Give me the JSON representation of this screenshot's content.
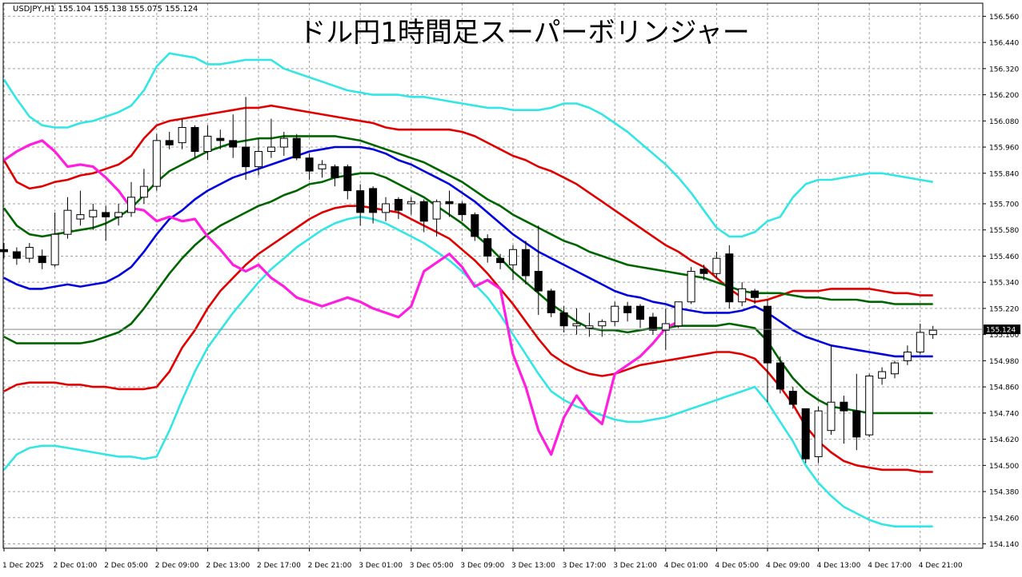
{
  "header": {
    "symbol_info": "USDJPY,H1  155.104 155.138 155.075 155.124",
    "title": "ドル円1時間足スーパーボリンジャー"
  },
  "current_price_label": "155.124",
  "colors": {
    "background": "#ffffff",
    "grid": "#a0a0a0",
    "candle_bull_fill": "#ffffff",
    "candle_bear_fill": "#000000",
    "candle_outline": "#000000",
    "sma": "#0000dd",
    "band_1sigma": "#006400",
    "band_2sigma": "#e00000",
    "band_3sigma": "#33e6e6",
    "lagging_span": "#ff1ee0",
    "price_line": "#888888"
  },
  "chart_data": {
    "type": "candlestick",
    "grid": true,
    "ylim": [
      154.12,
      156.62
    ],
    "y_ticks": [
      "156.560",
      "156.440",
      "156.320",
      "156.200",
      "156.080",
      "155.960",
      "155.840",
      "155.700",
      "155.580",
      "155.460",
      "155.340",
      "155.220",
      "155.100",
      "154.980",
      "154.860",
      "154.740",
      "154.620",
      "154.500",
      "154.380",
      "154.260",
      "154.140"
    ],
    "x_ticks": [
      {
        "bar": 0,
        "label": "1 Dec 2025"
      },
      {
        "bar": 4,
        "label": "2 Dec 01:00"
      },
      {
        "bar": 8,
        "label": "2 Dec 05:00"
      },
      {
        "bar": 12,
        "label": "2 Dec 09:00"
      },
      {
        "bar": 16,
        "label": "2 Dec 13:00"
      },
      {
        "bar": 20,
        "label": "2 Dec 17:00"
      },
      {
        "bar": 24,
        "label": "2 Dec 21:00"
      },
      {
        "bar": 28,
        "label": "3 Dec 01:00"
      },
      {
        "bar": 32,
        "label": "3 Dec 05:00"
      },
      {
        "bar": 36,
        "label": "3 Dec 09:00"
      },
      {
        "bar": 40,
        "label": "3 Dec 13:00"
      },
      {
        "bar": 44,
        "label": "3 Dec 17:00"
      },
      {
        "bar": 48,
        "label": "3 Dec 21:00"
      },
      {
        "bar": 52,
        "label": "4 Dec 01:00"
      },
      {
        "bar": 56,
        "label": "4 Dec 05:00"
      },
      {
        "bar": 60,
        "label": "4 Dec 09:00"
      },
      {
        "bar": 64,
        "label": "4 Dec 13:00"
      },
      {
        "bar": 68,
        "label": "4 Dec 17:00"
      },
      {
        "bar": 72,
        "label": "4 Dec 21:00"
      }
    ],
    "candles": [
      {
        "o": 155.49,
        "h": 155.52,
        "l": 155.45,
        "c": 155.48
      },
      {
        "o": 155.48,
        "h": 155.5,
        "l": 155.42,
        "c": 155.45
      },
      {
        "o": 155.45,
        "h": 155.52,
        "l": 155.43,
        "c": 155.5
      },
      {
        "o": 155.46,
        "h": 155.49,
        "l": 155.4,
        "c": 155.43
      },
      {
        "o": 155.42,
        "h": 155.66,
        "l": 155.41,
        "c": 155.56
      },
      {
        "o": 155.56,
        "h": 155.73,
        "l": 155.54,
        "c": 155.67
      },
      {
        "o": 155.63,
        "h": 155.76,
        "l": 155.6,
        "c": 155.65
      },
      {
        "o": 155.64,
        "h": 155.7,
        "l": 155.58,
        "c": 155.67
      },
      {
        "o": 155.66,
        "h": 155.69,
        "l": 155.53,
        "c": 155.64
      },
      {
        "o": 155.64,
        "h": 155.7,
        "l": 155.6,
        "c": 155.66
      },
      {
        "o": 155.66,
        "h": 155.8,
        "l": 155.64,
        "c": 155.73
      },
      {
        "o": 155.73,
        "h": 155.86,
        "l": 155.7,
        "c": 155.78
      },
      {
        "o": 155.78,
        "h": 156.02,
        "l": 155.76,
        "c": 155.99
      },
      {
        "o": 155.99,
        "h": 156.03,
        "l": 155.95,
        "c": 155.97
      },
      {
        "o": 155.98,
        "h": 156.09,
        "l": 155.95,
        "c": 156.05
      },
      {
        "o": 156.05,
        "h": 156.06,
        "l": 155.91,
        "c": 155.94
      },
      {
        "o": 155.94,
        "h": 156.06,
        "l": 155.9,
        "c": 156.01
      },
      {
        "o": 156.0,
        "h": 156.04,
        "l": 155.95,
        "c": 155.99
      },
      {
        "o": 155.99,
        "h": 156.11,
        "l": 155.91,
        "c": 155.96
      },
      {
        "o": 155.96,
        "h": 156.19,
        "l": 155.81,
        "c": 155.87
      },
      {
        "o": 155.87,
        "h": 156.0,
        "l": 155.83,
        "c": 155.94
      },
      {
        "o": 155.94,
        "h": 156.09,
        "l": 155.91,
        "c": 155.96
      },
      {
        "o": 155.96,
        "h": 156.03,
        "l": 155.92,
        "c": 156.0
      },
      {
        "o": 156.0,
        "h": 156.02,
        "l": 155.9,
        "c": 155.91
      },
      {
        "o": 155.91,
        "h": 155.93,
        "l": 155.81,
        "c": 155.85
      },
      {
        "o": 155.86,
        "h": 155.9,
        "l": 155.82,
        "c": 155.88
      },
      {
        "o": 155.87,
        "h": 155.88,
        "l": 155.78,
        "c": 155.82
      },
      {
        "o": 155.87,
        "h": 155.88,
        "l": 155.72,
        "c": 155.76
      },
      {
        "o": 155.76,
        "h": 155.79,
        "l": 155.6,
        "c": 155.66
      },
      {
        "o": 155.77,
        "h": 155.78,
        "l": 155.61,
        "c": 155.66
      },
      {
        "o": 155.66,
        "h": 155.73,
        "l": 155.62,
        "c": 155.7
      },
      {
        "o": 155.72,
        "h": 155.73,
        "l": 155.63,
        "c": 155.67
      },
      {
        "o": 155.7,
        "h": 155.73,
        "l": 155.65,
        "c": 155.71
      },
      {
        "o": 155.71,
        "h": 155.72,
        "l": 155.57,
        "c": 155.62
      },
      {
        "o": 155.63,
        "h": 155.72,
        "l": 155.55,
        "c": 155.71
      },
      {
        "o": 155.71,
        "h": 155.76,
        "l": 155.64,
        "c": 155.7
      },
      {
        "o": 155.7,
        "h": 155.71,
        "l": 155.62,
        "c": 155.65
      },
      {
        "o": 155.65,
        "h": 155.66,
        "l": 155.53,
        "c": 155.55
      },
      {
        "o": 155.54,
        "h": 155.56,
        "l": 155.43,
        "c": 155.46
      },
      {
        "o": 155.45,
        "h": 155.47,
        "l": 155.4,
        "c": 155.43
      },
      {
        "o": 155.42,
        "h": 155.51,
        "l": 155.35,
        "c": 155.49
      },
      {
        "o": 155.49,
        "h": 155.53,
        "l": 155.33,
        "c": 155.37
      },
      {
        "o": 155.39,
        "h": 155.6,
        "l": 155.19,
        "c": 155.3
      },
      {
        "o": 155.3,
        "h": 155.31,
        "l": 155.18,
        "c": 155.2
      },
      {
        "o": 155.2,
        "h": 155.23,
        "l": 155.11,
        "c": 155.14
      },
      {
        "o": 155.14,
        "h": 155.22,
        "l": 155.1,
        "c": 155.15
      },
      {
        "o": 155.13,
        "h": 155.2,
        "l": 155.09,
        "c": 155.14
      },
      {
        "o": 155.14,
        "h": 155.17,
        "l": 155.09,
        "c": 155.16
      },
      {
        "o": 155.16,
        "h": 155.25,
        "l": 155.14,
        "c": 155.23
      },
      {
        "o": 155.23,
        "h": 155.25,
        "l": 155.16,
        "c": 155.2
      },
      {
        "o": 155.23,
        "h": 155.24,
        "l": 155.13,
        "c": 155.17
      },
      {
        "o": 155.18,
        "h": 155.2,
        "l": 155.1,
        "c": 155.12
      },
      {
        "o": 155.12,
        "h": 155.22,
        "l": 155.03,
        "c": 155.15
      },
      {
        "o": 155.14,
        "h": 155.25,
        "l": 155.13,
        "c": 155.25
      },
      {
        "o": 155.25,
        "h": 155.41,
        "l": 155.24,
        "c": 155.39
      },
      {
        "o": 155.4,
        "h": 155.42,
        "l": 155.35,
        "c": 155.38
      },
      {
        "o": 155.38,
        "h": 155.48,
        "l": 155.36,
        "c": 155.45
      },
      {
        "o": 155.47,
        "h": 155.51,
        "l": 155.22,
        "c": 155.25
      },
      {
        "o": 155.25,
        "h": 155.34,
        "l": 155.23,
        "c": 155.31
      },
      {
        "o": 155.3,
        "h": 155.31,
        "l": 155.24,
        "c": 155.27
      },
      {
        "o": 155.23,
        "h": 155.26,
        "l": 154.79,
        "c": 154.97
      },
      {
        "o": 154.97,
        "h": 155.0,
        "l": 154.83,
        "c": 154.85
      },
      {
        "o": 154.84,
        "h": 154.86,
        "l": 154.76,
        "c": 154.78
      },
      {
        "o": 154.76,
        "h": 154.76,
        "l": 154.51,
        "c": 154.53
      },
      {
        "o": 154.54,
        "h": 154.77,
        "l": 154.51,
        "c": 154.75
      },
      {
        "o": 154.66,
        "h": 155.05,
        "l": 154.64,
        "c": 154.79
      },
      {
        "o": 154.79,
        "h": 154.82,
        "l": 154.6,
        "c": 154.75
      },
      {
        "o": 154.75,
        "h": 154.92,
        "l": 154.57,
        "c": 154.63
      },
      {
        "o": 154.64,
        "h": 154.92,
        "l": 154.63,
        "c": 154.91
      },
      {
        "o": 154.9,
        "h": 154.95,
        "l": 154.87,
        "c": 154.93
      },
      {
        "o": 154.92,
        "h": 154.98,
        "l": 154.9,
        "c": 154.97
      },
      {
        "o": 154.98,
        "h": 155.05,
        "l": 154.96,
        "c": 155.02
      },
      {
        "o": 155.02,
        "h": 155.15,
        "l": 155.01,
        "c": 155.11
      },
      {
        "o": 155.1,
        "h": 155.14,
        "l": 155.08,
        "c": 155.12
      }
    ],
    "sma": [
      155.36,
      155.33,
      155.31,
      155.31,
      155.32,
      155.33,
      155.32,
      155.33,
      155.34,
      155.37,
      155.41,
      155.48,
      155.56,
      155.63,
      155.67,
      155.72,
      155.76,
      155.79,
      155.82,
      155.84,
      155.86,
      155.88,
      155.9,
      155.92,
      155.94,
      155.95,
      155.96,
      155.96,
      155.96,
      155.95,
      155.93,
      155.9,
      155.88,
      155.85,
      155.82,
      155.79,
      155.75,
      155.71,
      155.66,
      155.61,
      155.56,
      155.52,
      155.48,
      155.45,
      155.42,
      155.39,
      155.36,
      155.33,
      155.3,
      155.28,
      155.27,
      155.25,
      155.24,
      155.22,
      155.21,
      155.2,
      155.2,
      155.2,
      155.21,
      155.23,
      155.2,
      155.16,
      155.12,
      155.09,
      155.07,
      155.05,
      155.04,
      155.03,
      155.02,
      155.01,
      155.0,
      155.0,
      155.0,
      155.0
    ],
    "band_plus_1sigma": [
      155.68,
      155.6,
      155.56,
      155.55,
      155.56,
      155.57,
      155.58,
      155.59,
      155.61,
      155.64,
      155.68,
      155.74,
      155.8,
      155.85,
      155.88,
      155.91,
      155.94,
      155.96,
      155.98,
      155.99,
      156.0,
      156.0,
      156.01,
      156.01,
      156.01,
      156.01,
      156.01,
      156.0,
      155.99,
      155.97,
      155.95,
      155.93,
      155.91,
      155.89,
      155.86,
      155.83,
      155.8,
      155.76,
      155.72,
      155.69,
      155.65,
      155.62,
      155.59,
      155.56,
      155.53,
      155.51,
      155.48,
      155.46,
      155.44,
      155.42,
      155.41,
      155.4,
      155.39,
      155.38,
      155.37,
      155.36,
      155.34,
      155.32,
      155.3,
      155.29,
      155.29,
      155.29,
      155.28,
      155.27,
      155.27,
      155.26,
      155.26,
      155.26,
      155.25,
      155.25,
      155.24,
      155.24,
      155.24,
      155.24
    ],
    "band_plus_2sigma": [
      155.9,
      155.8,
      155.77,
      155.78,
      155.8,
      155.81,
      155.83,
      155.84,
      155.86,
      155.88,
      155.92,
      156.0,
      156.06,
      156.08,
      156.09,
      156.1,
      156.11,
      156.12,
      156.13,
      156.14,
      156.14,
      156.15,
      156.14,
      156.13,
      156.12,
      156.11,
      156.1,
      156.09,
      156.08,
      156.07,
      156.05,
      156.04,
      156.04,
      156.04,
      156.04,
      156.04,
      156.03,
      156.01,
      155.98,
      155.95,
      155.92,
      155.9,
      155.87,
      155.85,
      155.82,
      155.79,
      155.75,
      155.71,
      155.67,
      155.63,
      155.59,
      155.55,
      155.51,
      155.48,
      155.44,
      155.41,
      155.36,
      155.31,
      155.27,
      155.25,
      155.26,
      155.28,
      155.3,
      155.3,
      155.3,
      155.31,
      155.31,
      155.31,
      155.31,
      155.3,
      155.29,
      155.29,
      155.28,
      155.28
    ],
    "band_plus_3sigma": [
      156.27,
      156.18,
      156.1,
      156.06,
      156.05,
      156.05,
      156.07,
      156.08,
      156.1,
      156.12,
      156.15,
      156.22,
      156.33,
      156.39,
      156.38,
      156.37,
      156.34,
      156.34,
      156.35,
      156.36,
      156.36,
      156.36,
      156.32,
      156.3,
      156.28,
      156.26,
      156.24,
      156.22,
      156.21,
      156.2,
      156.2,
      156.2,
      156.19,
      156.19,
      156.18,
      156.17,
      156.16,
      156.15,
      156.14,
      156.14,
      156.13,
      156.13,
      156.13,
      156.14,
      156.16,
      156.16,
      156.14,
      156.11,
      156.07,
      156.03,
      155.98,
      155.93,
      155.88,
      155.82,
      155.75,
      155.67,
      155.59,
      155.55,
      155.55,
      155.57,
      155.62,
      155.64,
      155.73,
      155.79,
      155.81,
      155.81,
      155.82,
      155.83,
      155.84,
      155.84,
      155.83,
      155.82,
      155.81,
      155.8
    ],
    "band_minus_1sigma": [
      155.09,
      155.06,
      155.06,
      155.06,
      155.06,
      155.06,
      155.06,
      155.07,
      155.09,
      155.11,
      155.15,
      155.22,
      155.3,
      155.38,
      155.45,
      155.51,
      155.56,
      155.6,
      155.63,
      155.66,
      155.69,
      155.71,
      155.74,
      155.76,
      155.79,
      155.8,
      155.82,
      155.83,
      155.84,
      155.84,
      155.82,
      155.79,
      155.76,
      155.73,
      155.69,
      155.65,
      155.61,
      155.56,
      155.51,
      155.45,
      155.39,
      155.34,
      155.29,
      155.24,
      155.2,
      155.16,
      155.13,
      155.12,
      155.12,
      155.11,
      155.12,
      155.13,
      155.13,
      155.14,
      155.14,
      155.14,
      155.14,
      155.15,
      155.14,
      155.13,
      155.07,
      154.98,
      154.9,
      154.84,
      154.8,
      154.77,
      154.76,
      154.75,
      154.74,
      154.74,
      154.74,
      154.74,
      154.74,
      154.74
    ],
    "band_minus_2sigma": [
      154.84,
      154.87,
      154.88,
      154.88,
      154.88,
      154.87,
      154.87,
      154.86,
      154.86,
      154.85,
      154.85,
      154.85,
      154.86,
      154.93,
      155.04,
      155.12,
      155.22,
      155.3,
      155.36,
      155.42,
      155.47,
      155.51,
      155.55,
      155.59,
      155.63,
      155.66,
      155.68,
      155.69,
      155.69,
      155.68,
      155.67,
      155.66,
      155.63,
      155.6,
      155.57,
      155.54,
      155.49,
      155.44,
      155.38,
      155.31,
      155.24,
      155.16,
      155.08,
      155.01,
      154.97,
      154.94,
      154.92,
      154.91,
      154.92,
      154.94,
      154.96,
      154.97,
      154.98,
      154.99,
      155.0,
      155.01,
      155.02,
      155.02,
      155.01,
      154.99,
      154.93,
      154.86,
      154.78,
      154.68,
      154.61,
      154.56,
      154.52,
      154.5,
      154.49,
      154.48,
      154.48,
      154.48,
      154.47,
      154.47
    ],
    "band_minus_3sigma": [
      154.48,
      154.55,
      154.58,
      154.59,
      154.59,
      154.58,
      154.57,
      154.56,
      154.55,
      154.54,
      154.54,
      154.53,
      154.54,
      154.66,
      154.8,
      154.93,
      155.04,
      155.12,
      155.2,
      155.27,
      155.34,
      155.4,
      155.45,
      155.5,
      155.54,
      155.58,
      155.61,
      155.63,
      155.64,
      155.63,
      155.61,
      155.58,
      155.55,
      155.52,
      155.48,
      155.44,
      155.39,
      155.33,
      155.27,
      155.19,
      155.1,
      155.01,
      154.92,
      154.84,
      154.8,
      154.77,
      154.75,
      154.73,
      154.71,
      154.7,
      154.7,
      154.71,
      154.72,
      154.74,
      154.76,
      154.78,
      154.8,
      154.82,
      154.84,
      154.86,
      154.79,
      154.7,
      154.61,
      154.5,
      154.42,
      154.36,
      154.31,
      154.28,
      154.25,
      154.23,
      154.22,
      154.22,
      154.22,
      154.22
    ],
    "lagging_span": [
      155.9,
      155.94,
      155.97,
      155.99,
      155.94,
      155.87,
      155.88,
      155.87,
      155.82,
      155.76,
      155.68,
      155.67,
      155.62,
      155.64,
      155.62,
      155.63,
      155.55,
      155.49,
      155.42,
      155.39,
      155.42,
      155.36,
      155.32,
      155.27,
      155.25,
      155.23,
      155.25,
      155.27,
      155.25,
      155.22,
      155.2,
      155.18,
      155.23,
      155.39,
      155.43,
      155.47,
      155.41,
      155.32,
      155.35,
      155.31,
      155.01,
      154.86,
      154.66,
      154.55,
      154.72,
      154.82,
      154.74,
      154.69,
      154.92,
      154.96,
      155.0,
      155.06,
      155.13,
      155.16
    ]
  }
}
